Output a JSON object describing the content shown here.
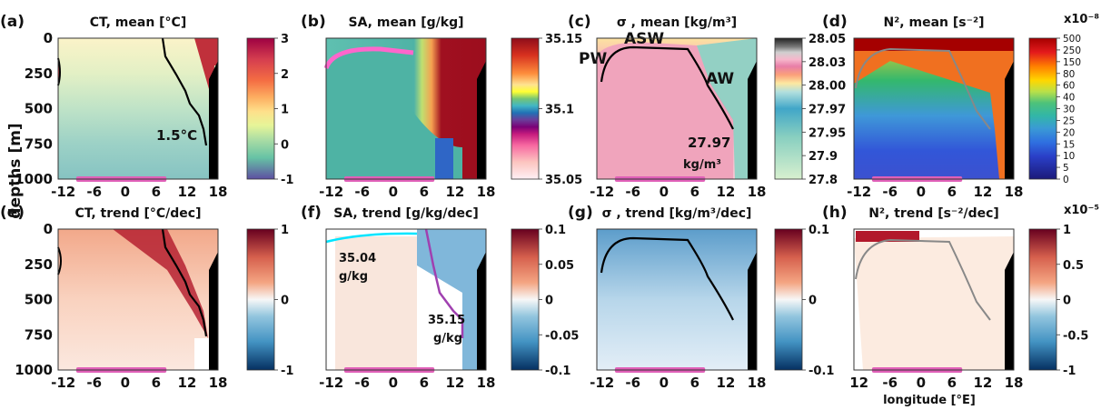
{
  "figure": {
    "ylabel": "depths [m]",
    "xlabel_bottom": "longitude [°E]"
  },
  "colors": {
    "marker_bar": "#e060b8",
    "contour_main": "#000000",
    "contour_cyan": "#00e5ff",
    "contour_purple": "#a040b0",
    "contour_gray": "#888888"
  },
  "chart_data": [
    {
      "id": "a",
      "type": "heatmap",
      "letter": "(a)",
      "title": "CT, mean [°C]",
      "xticks": [
        "-12",
        "-6",
        "0",
        "6",
        "12",
        "18"
      ],
      "yticks": [
        "0",
        "250",
        "500",
        "750",
        "1000"
      ],
      "xlim": [
        -13,
        18
      ],
      "ylim": [
        1000,
        0
      ],
      "colorbar": {
        "ticks": [
          "3",
          "2",
          "1",
          "0",
          "-1"
        ],
        "scale": "jet-like"
      },
      "annotations": [
        "1.5°C"
      ]
    },
    {
      "id": "b",
      "type": "heatmap",
      "letter": "(b)",
      "title": "SA, mean [g/kg]",
      "xticks": [
        "-12",
        "-6",
        "0",
        "6",
        "12",
        "18"
      ],
      "yticks": [],
      "xlim": [
        -13,
        18
      ],
      "ylim": [
        1000,
        0
      ],
      "colorbar": {
        "ticks": [
          "35.15",
          "35.1",
          "35.05"
        ],
        "scale": "discrete spectral"
      },
      "annotations": []
    },
    {
      "id": "c",
      "type": "heatmap",
      "letter": "(c)",
      "title": "σ , mean [kg/m³]",
      "xticks": [
        "-12",
        "-6",
        "0",
        "6",
        "12",
        "18"
      ],
      "yticks": [],
      "xlim": [
        -13,
        18
      ],
      "ylim": [
        1000,
        0
      ],
      "colorbar": {
        "ticks": [
          "28.05",
          "28.03",
          "28.00",
          "27.97",
          "27.95",
          "27.9",
          "27.8"
        ],
        "scale": "discrete"
      },
      "annotations": [
        "PW",
        "ASW",
        "AW",
        "27.97",
        "kg/m³"
      ]
    },
    {
      "id": "d",
      "type": "heatmap",
      "letter": "(d)",
      "title": "N², mean [s⁻²]",
      "xticks": [
        "-12",
        "-6",
        "0",
        "6",
        "12",
        "18"
      ],
      "yticks": [],
      "xlim": [
        -13,
        18
      ],
      "ylim": [
        1000,
        0
      ],
      "colorbar": {
        "ticks": [
          "500",
          "250",
          "150",
          "80",
          "60",
          "40",
          "30",
          "25",
          "20",
          "15",
          "10",
          "5",
          "0"
        ],
        "multiplier": "x10⁻⁸",
        "scale": "discrete"
      },
      "annotations": []
    },
    {
      "id": "e",
      "type": "heatmap",
      "letter": "(e)",
      "title": "CT, trend [°C/dec]",
      "xticks": [
        "-12",
        "-6",
        "0",
        "6",
        "12",
        "18"
      ],
      "yticks": [
        "0",
        "250",
        "500",
        "750",
        "1000"
      ],
      "xlim": [
        -13,
        18
      ],
      "ylim": [
        1000,
        0
      ],
      "colorbar": {
        "ticks": [
          "1",
          "0",
          "-1"
        ],
        "scale": "RdBu"
      },
      "annotations": []
    },
    {
      "id": "f",
      "type": "heatmap",
      "letter": "(f)",
      "title": "SA, trend [g/kg/dec]",
      "xticks": [
        "-12",
        "-6",
        "0",
        "6",
        "12",
        "18"
      ],
      "yticks": [],
      "xlim": [
        -13,
        18
      ],
      "ylim": [
        1000,
        0
      ],
      "colorbar": {
        "ticks": [
          "0.1",
          "0.05",
          "0",
          "-0.05",
          "-0.1"
        ],
        "scale": "RdBu"
      },
      "annotations": [
        "35.04",
        "g/kg",
        "35.15",
        "g/kg"
      ]
    },
    {
      "id": "g",
      "type": "heatmap",
      "letter": "(g)",
      "title": "σ , trend [kg/m³/dec]",
      "xticks": [
        "-12",
        "-6",
        "0",
        "6",
        "12",
        "18"
      ],
      "yticks": [],
      "xlim": [
        -13,
        18
      ],
      "ylim": [
        1000,
        0
      ],
      "colorbar": {
        "ticks": [
          "0.1",
          "0",
          "-0.1"
        ],
        "scale": "RdBu"
      },
      "annotations": []
    },
    {
      "id": "h",
      "type": "heatmap",
      "letter": "(h)",
      "title": "N², trend [s⁻²/dec]",
      "xticks": [
        "12",
        "-6",
        "0",
        "6",
        "12",
        "18"
      ],
      "yticks": [],
      "xlim": [
        -13,
        18
      ],
      "ylim": [
        1000,
        0
      ],
      "colorbar": {
        "ticks": [
          "1",
          "0.5",
          "0",
          "-0.5",
          "-1"
        ],
        "multiplier": "x10⁻⁵",
        "scale": "RdBu"
      },
      "annotations": []
    }
  ]
}
